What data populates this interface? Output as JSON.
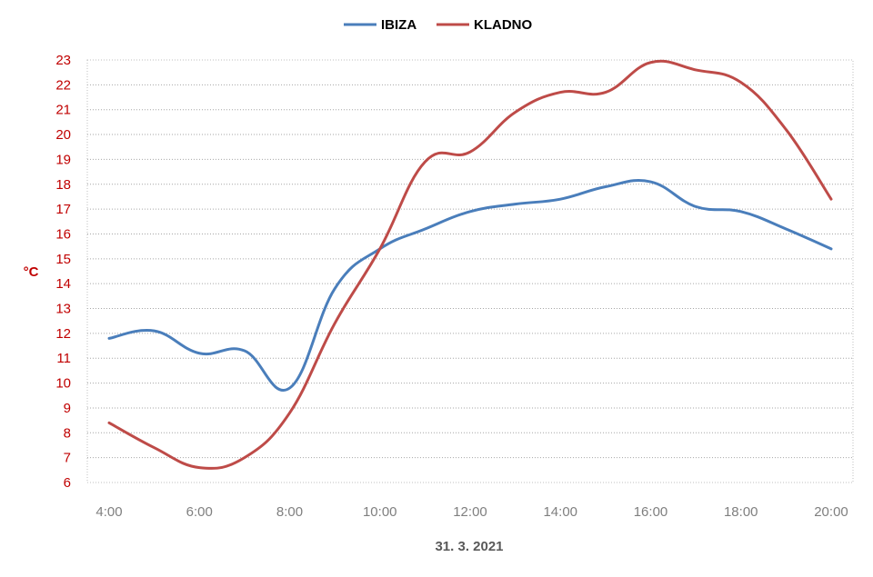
{
  "chart_data": {
    "type": "line",
    "title": "",
    "xlabel": "31. 3. 2021",
    "ylabel": "°C",
    "x": [
      "4:00",
      "5:00",
      "6:00",
      "7:00",
      "8:00",
      "9:00",
      "10:00",
      "11:00",
      "12:00",
      "13:00",
      "14:00",
      "15:00",
      "16:00",
      "17:00",
      "18:00",
      "19:00",
      "20:00"
    ],
    "x_tick_labels": [
      "4:00",
      "6:00",
      "8:00",
      "10:00",
      "12:00",
      "14:00",
      "16:00",
      "18:00",
      "20:00"
    ],
    "ylim": [
      6,
      23
    ],
    "y_ticks": [
      6,
      7,
      8,
      9,
      10,
      11,
      12,
      13,
      14,
      15,
      16,
      17,
      18,
      19,
      20,
      21,
      22,
      23
    ],
    "grid": "horizontal dotted",
    "legend_position": "top",
    "series": [
      {
        "name": "IBIZA",
        "color": "#4a7ebb",
        "values": [
          11.8,
          12.1,
          11.2,
          11.3,
          9.8,
          13.8,
          15.4,
          16.2,
          16.9,
          17.2,
          17.4,
          17.9,
          18.1,
          17.1,
          16.9,
          16.2,
          15.4
        ]
      },
      {
        "name": "KLADNO",
        "color": "#be4b48",
        "values": [
          8.4,
          7.4,
          6.6,
          7.0,
          8.8,
          12.4,
          15.4,
          18.9,
          19.3,
          20.9,
          21.7,
          21.7,
          22.9,
          22.6,
          22.1,
          20.2,
          17.4
        ]
      }
    ]
  }
}
